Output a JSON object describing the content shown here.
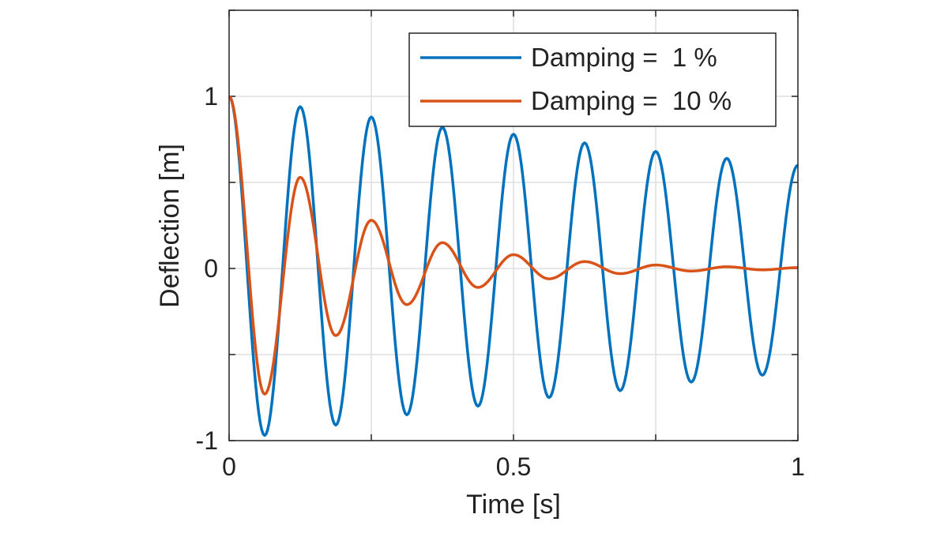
{
  "chart_data": {
    "type": "line",
    "xlabel": "Time [s]",
    "ylabel": "Deflection [m]",
    "xlim": [
      0,
      1
    ],
    "ylim": [
      -1,
      1.5
    ],
    "xticks": [
      0,
      0.5,
      1
    ],
    "xtick_labels": [
      "0",
      "0.5",
      "1"
    ],
    "yticks": [
      -1,
      0,
      1
    ],
    "ytick_labels": [
      "-1",
      "0",
      "1"
    ],
    "x_gridlines": [
      0,
      0.25,
      0.5,
      0.75,
      1
    ],
    "y_gridlines": [
      -1,
      -0.5,
      0,
      0.5,
      1,
      1.5
    ],
    "grid": true,
    "legend_position": "top-right",
    "x": [
      0,
      0.0625,
      0.125,
      0.1875,
      0.25,
      0.3125,
      0.375,
      0.4375,
      0.5,
      0.5625,
      0.625,
      0.6875,
      0.75,
      0.8125,
      0.875,
      0.9375,
      1
    ],
    "series": [
      {
        "name": "Damping =  1 %",
        "color": "#0072BD",
        "values": [
          1.0,
          -0.97,
          0.94,
          -0.91,
          0.88,
          -0.85,
          0.82,
          -0.8,
          0.78,
          -0.75,
          0.73,
          -0.71,
          0.68,
          -0.66,
          0.64,
          -0.62,
          0.6
        ]
      },
      {
        "name": "Damping =  10 %",
        "color": "#D95319",
        "values": [
          1.0,
          -0.73,
          0.53,
          -0.39,
          0.28,
          -0.21,
          0.15,
          -0.11,
          0.08,
          -0.06,
          0.04,
          -0.03,
          0.02,
          -0.015,
          0.01,
          -0.008,
          0.005
        ]
      }
    ]
  }
}
